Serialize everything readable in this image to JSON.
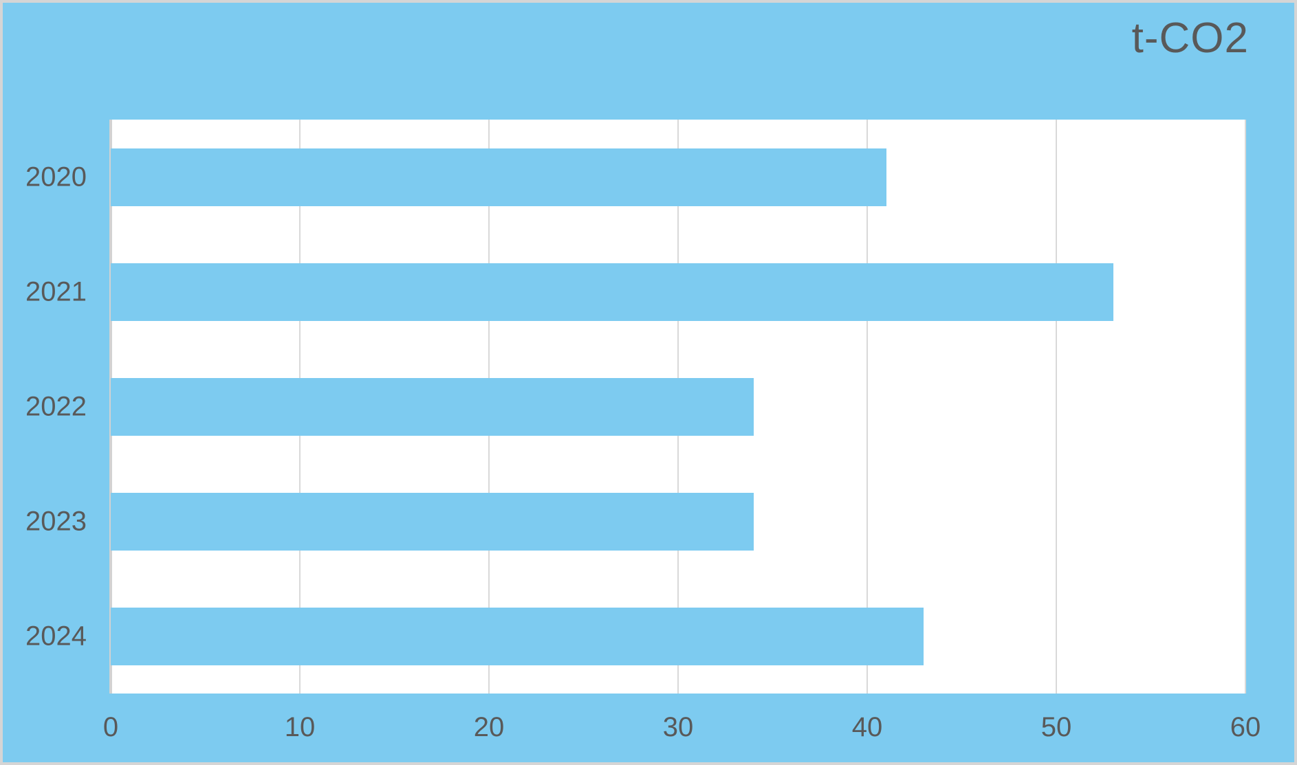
{
  "chart_data": {
    "type": "bar",
    "orientation": "horizontal",
    "title": "t-CO2",
    "categories": [
      "2020",
      "2021",
      "2022",
      "2023",
      "2024"
    ],
    "values": [
      41,
      53,
      34,
      34,
      43
    ],
    "xlabel": "",
    "ylabel": "",
    "xlim": [
      0,
      60
    ],
    "x_ticks": [
      0,
      10,
      20,
      30,
      40,
      50,
      60
    ],
    "grid": "vertical-only",
    "legend": "none",
    "colors": {
      "bar": "#7DCBF0",
      "chart_background": "#7DCBF0",
      "plot_background": "#FFFFFF",
      "gridline": "#D9D9D9",
      "axis_line": "#D2D2D2",
      "text": "#595959",
      "frame_border": "#D5D5D5"
    }
  }
}
